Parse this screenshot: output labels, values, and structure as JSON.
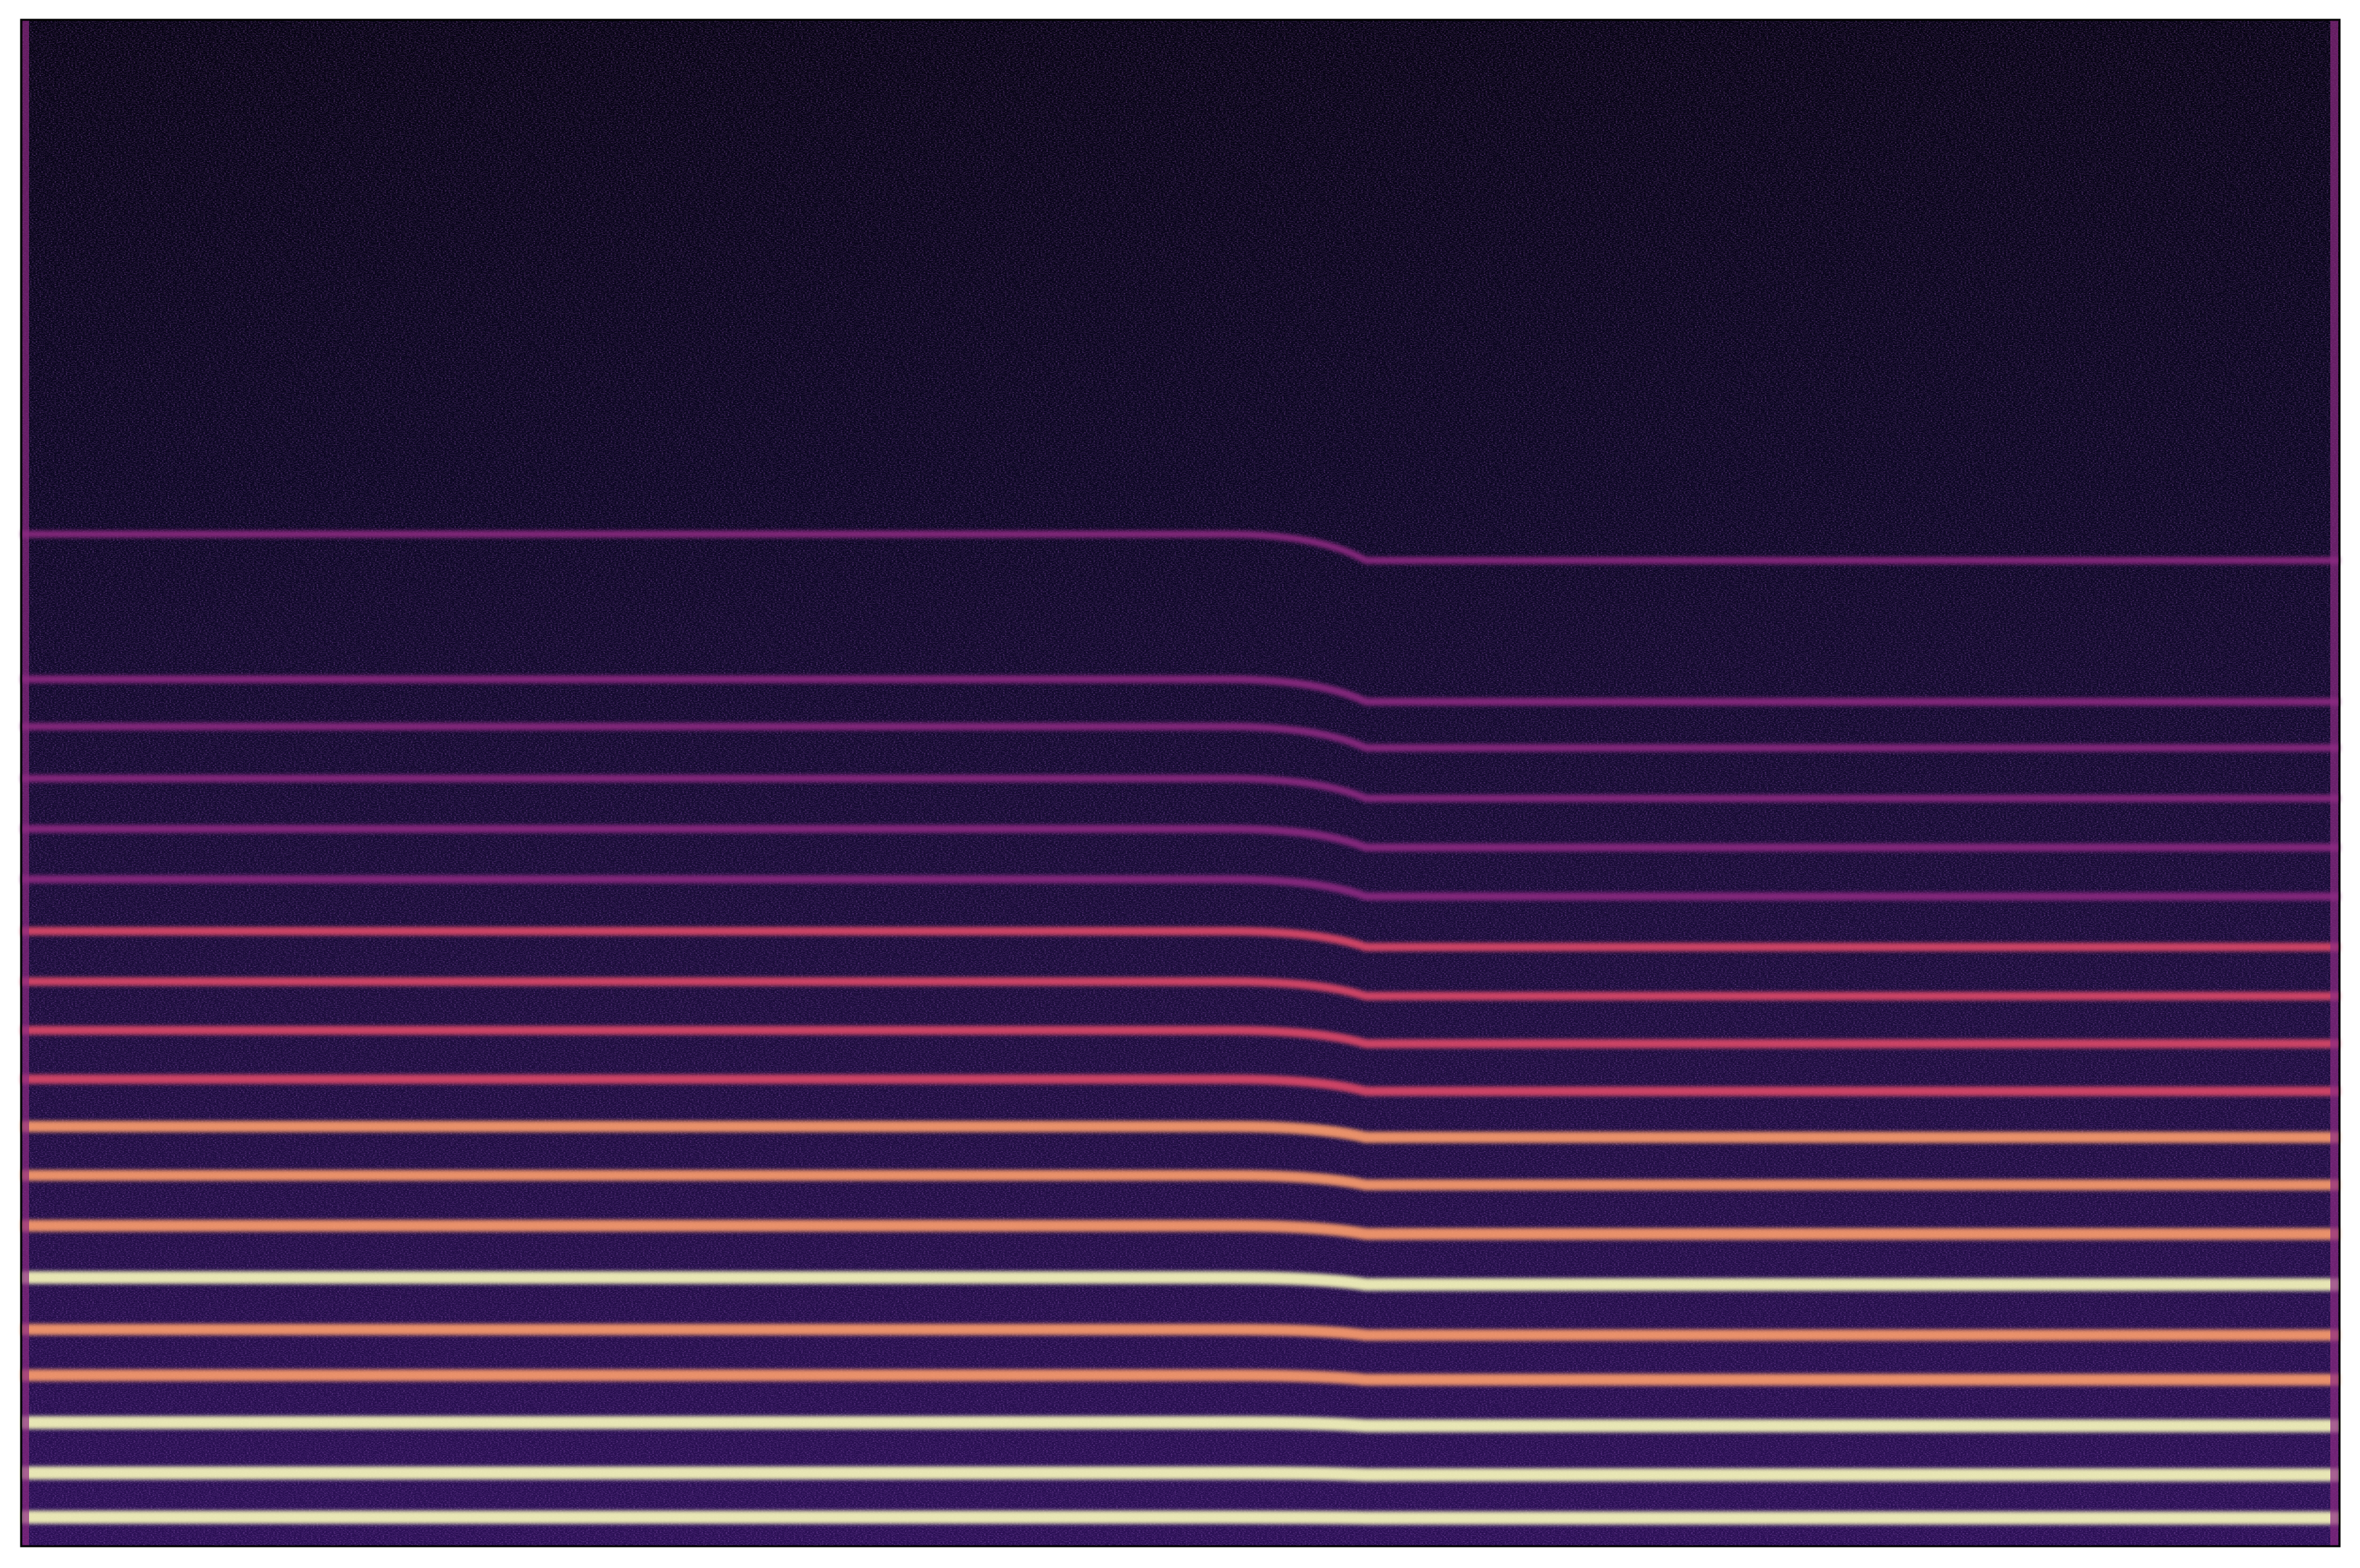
{
  "chart_data": {
    "type": "spectrogram",
    "colormap": "magma"
  }
}
